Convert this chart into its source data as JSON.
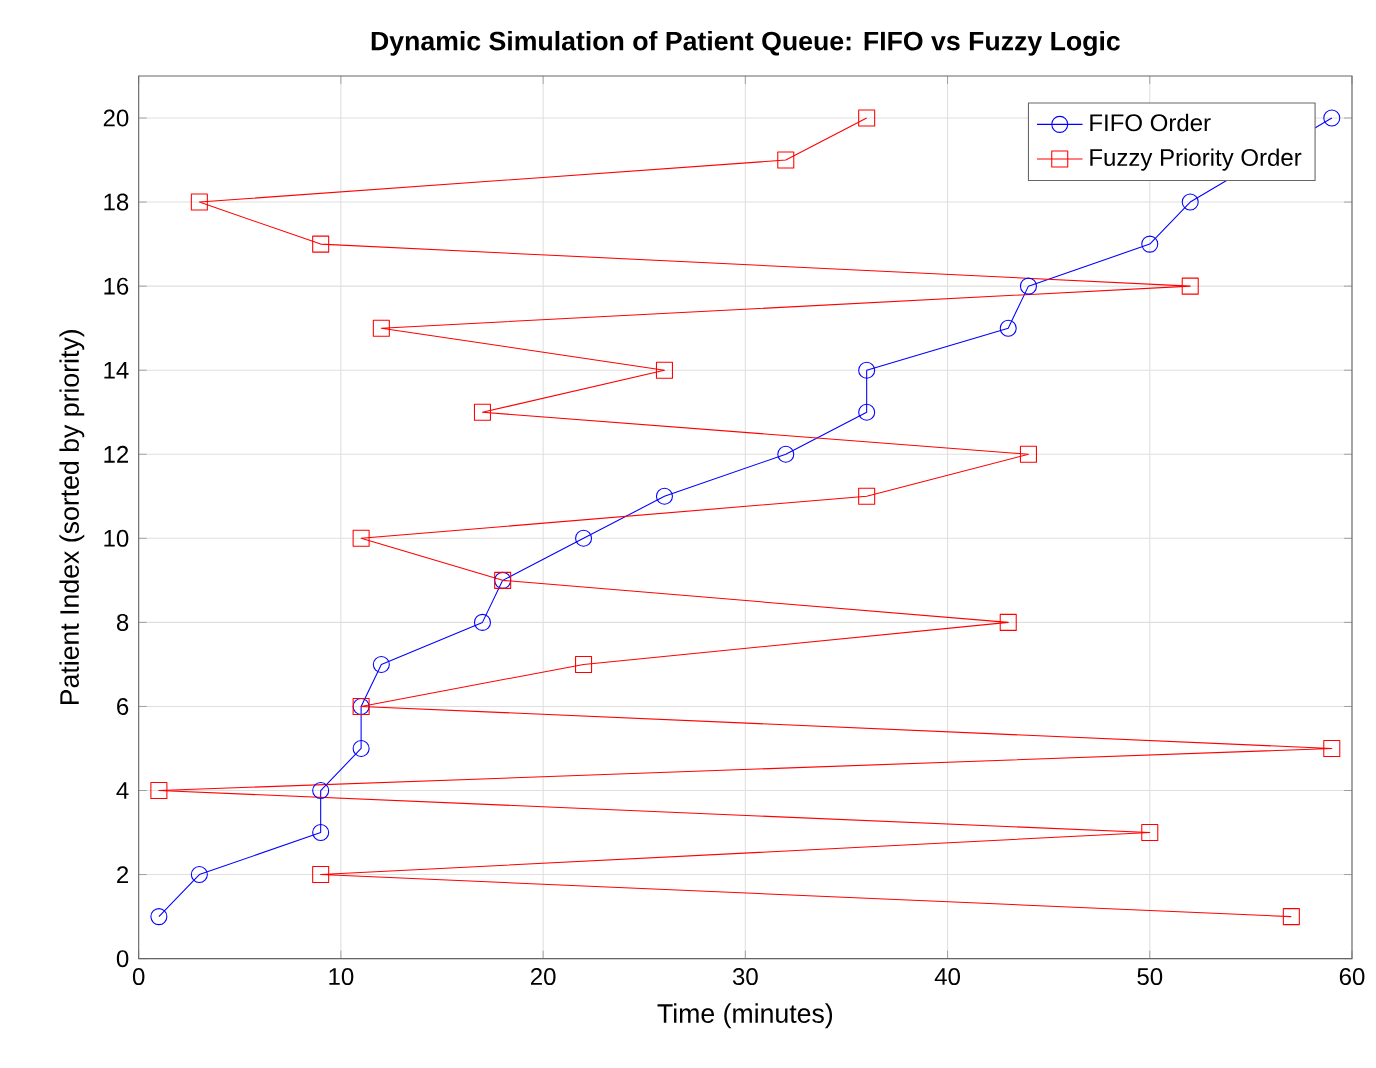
{
  "chart_data": {
    "type": "line",
    "title": "Dynamic Simulation of Patient Queue: FIFO vs Fuzzy Logic",
    "xlabel": "Time (minutes)",
    "ylabel": "Patient Index (sorted by priority)",
    "series": [
      {
        "name": "FIFO Order",
        "color": "#0000ff",
        "marker": "circle",
        "x": [
          1,
          3,
          9,
          9,
          11,
          11,
          12,
          17,
          18,
          22,
          26,
          32,
          36,
          36,
          43,
          44,
          50,
          52,
          null,
          59
        ],
        "values": [
          1,
          2,
          3,
          4,
          5,
          6,
          7,
          8,
          9,
          10,
          11,
          12,
          13,
          14,
          15,
          16,
          17,
          18,
          null,
          20
        ]
      },
      {
        "name": "Fuzzy Priority Order",
        "color": "#ff0000",
        "marker": "square",
        "x": [
          57,
          9,
          50,
          1,
          59,
          11,
          22,
          43,
          18,
          11,
          36,
          44,
          17,
          26,
          12,
          52,
          9,
          3,
          32,
          36
        ],
        "values": [
          1,
          2,
          3,
          4,
          5,
          6,
          7,
          8,
          9,
          10,
          11,
          12,
          13,
          14,
          15,
          16,
          17,
          18,
          19,
          20
        ]
      }
    ],
    "xlim": [
      0,
      60
    ],
    "ylim": [
      0,
      21
    ],
    "xticks": [
      0,
      10,
      20,
      30,
      40,
      50,
      60
    ],
    "yticks": [
      0,
      2,
      4,
      6,
      8,
      10,
      12,
      14,
      16,
      18,
      20
    ],
    "grid": true,
    "legend": "top right"
  }
}
